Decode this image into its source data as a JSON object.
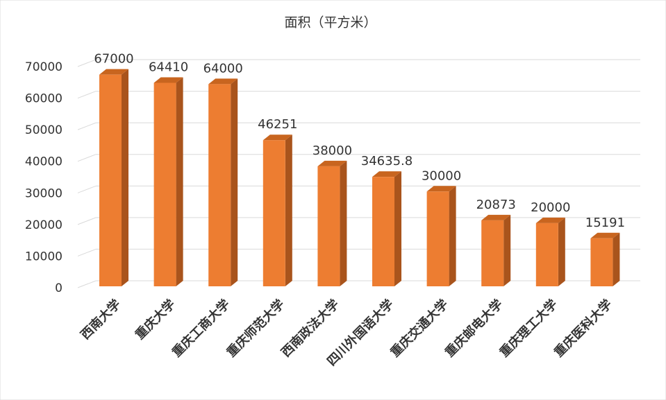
{
  "chart_data": {
    "type": "bar3d",
    "title": "面积（平方米）",
    "categories": [
      "西南大学",
      "重庆大学",
      "重庆工商大学",
      "重庆师范大学",
      "西南政法大学",
      "四川外国语大学",
      "重庆交通大学",
      "重庆邮电大学",
      "重庆理工大学",
      "重庆医科大学"
    ],
    "values": [
      67000,
      64410,
      64000,
      46251,
      38000,
      34635.8,
      30000,
      20873,
      20000,
      15191
    ],
    "color": "#ed7d31",
    "ylim": [
      0,
      70000
    ],
    "yticks": [
      0,
      10000,
      20000,
      30000,
      40000,
      50000,
      60000,
      70000
    ],
    "grid": true
  }
}
